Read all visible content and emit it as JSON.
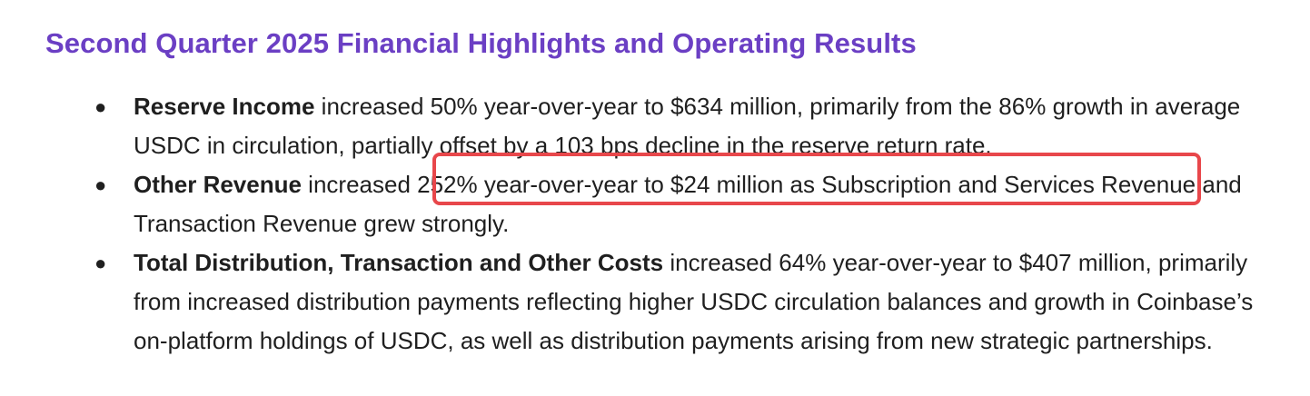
{
  "heading": "Second Quarter 2025 Financial Highlights and Operating Results",
  "bullets": [
    {
      "bold": "Reserve Income",
      "text": " increased 50% year-over-year to $634 million, primarily from the 86% growth in average USDC in circulation, partially offset by a 103 bps decline in the reserve return rate."
    },
    {
      "bold": "Other Revenue",
      "text": " increased 252% year-over-year to $24 million as Subscription and Services Revenue and Transaction Revenue grew strongly."
    },
    {
      "bold": "Total Distribution, Transaction and Other Costs",
      "text": " increased 64% year-over-year to $407 million, primarily from increased distribution payments reflecting higher USDC circulation balances and growth in Coinbase’s on-platform holdings of USDC, as well as distribution payments arising from new strategic partnerships."
    }
  ],
  "bullet_symbol": "●",
  "colors": {
    "heading": "#6b3fc4",
    "highlight_border": "#e8474b",
    "text": "#1f1f1f"
  }
}
